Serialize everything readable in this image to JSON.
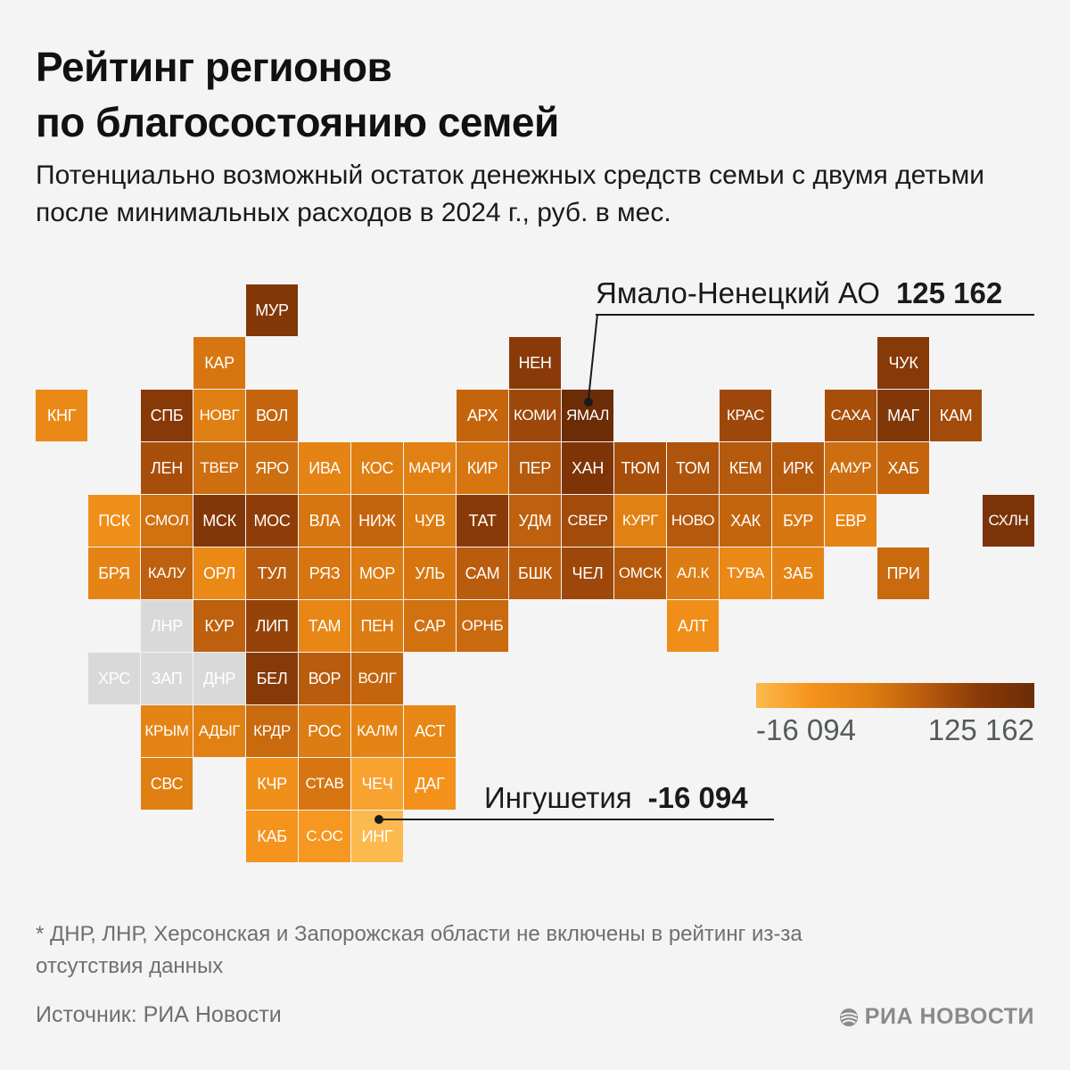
{
  "header": {
    "title_line1": "Рейтинг регионов",
    "title_line2": "по благосостоянию семей",
    "subtitle": "Потенциально возможный остаток денежных средств семьи с двумя детьми после минимальных расходов в 2024 г., руб. в мес."
  },
  "colors": {
    "scale": [
      "#fcb94d",
      "#f5931c",
      "#e07f12",
      "#ba5c0d",
      "#8a3a08",
      "#6b2c06"
    ],
    "no_data": "#d9d9d9",
    "text_on_tile": "#ffffff",
    "muted_text": "#6f6f6f"
  },
  "map": {
    "regions": [
      {
        "code": "МУР",
        "col": 4,
        "row": 0,
        "level": 0.85
      },
      {
        "code": "КАР",
        "col": 3,
        "row": 1,
        "level": 0.45
      },
      {
        "code": "НЕН",
        "col": 9,
        "row": 1,
        "level": 0.8
      },
      {
        "code": "ЧУК",
        "col": 16,
        "row": 1,
        "level": 0.82
      },
      {
        "code": "КНГ",
        "col": 0,
        "row": 2,
        "level": 0.3
      },
      {
        "code": "СПБ",
        "col": 2,
        "row": 2,
        "level": 0.82
      },
      {
        "code": "НОВГ",
        "col": 3,
        "row": 2,
        "level": 0.4
      },
      {
        "code": "ВОЛ",
        "col": 4,
        "row": 2,
        "level": 0.55
      },
      {
        "code": "АРХ",
        "col": 8,
        "row": 2,
        "level": 0.55
      },
      {
        "code": "КОМИ",
        "col": 9,
        "row": 2,
        "level": 0.72
      },
      {
        "code": "ЯМАЛ",
        "col": 10,
        "row": 2,
        "level": 1.0
      },
      {
        "code": "КРАС",
        "col": 13,
        "row": 2,
        "level": 0.72
      },
      {
        "code": "САХА",
        "col": 15,
        "row": 2,
        "level": 0.68
      },
      {
        "code": "МАГ",
        "col": 16,
        "row": 2,
        "level": 0.85
      },
      {
        "code": "КАМ",
        "col": 17,
        "row": 2,
        "level": 0.7
      },
      {
        "code": "ЛЕН",
        "col": 2,
        "row": 3,
        "level": 0.68
      },
      {
        "code": "ТВЕР",
        "col": 3,
        "row": 3,
        "level": 0.5
      },
      {
        "code": "ЯРО",
        "col": 4,
        "row": 3,
        "level": 0.5
      },
      {
        "code": "ИВА",
        "col": 5,
        "row": 3,
        "level": 0.35
      },
      {
        "code": "КОС",
        "col": 6,
        "row": 3,
        "level": 0.4
      },
      {
        "code": "МАРИ",
        "col": 7,
        "row": 3,
        "level": 0.38
      },
      {
        "code": "КИР",
        "col": 8,
        "row": 3,
        "level": 0.45
      },
      {
        "code": "ПЕР",
        "col": 9,
        "row": 3,
        "level": 0.62
      },
      {
        "code": "ХАН",
        "col": 10,
        "row": 3,
        "level": 0.88
      },
      {
        "code": "ТЮМ",
        "col": 11,
        "row": 3,
        "level": 0.68
      },
      {
        "code": "ТОМ",
        "col": 12,
        "row": 3,
        "level": 0.65
      },
      {
        "code": "КЕМ",
        "col": 13,
        "row": 3,
        "level": 0.62
      },
      {
        "code": "ИРК",
        "col": 14,
        "row": 3,
        "level": 0.62
      },
      {
        "code": "АМУР",
        "col": 15,
        "row": 3,
        "level": 0.5
      },
      {
        "code": "ХАБ",
        "col": 16,
        "row": 3,
        "level": 0.55
      },
      {
        "code": "ПСК",
        "col": 1,
        "row": 4,
        "level": 0.25
      },
      {
        "code": "СМОЛ",
        "col": 2,
        "row": 4,
        "level": 0.48
      },
      {
        "code": "МСК",
        "col": 3,
        "row": 4,
        "level": 0.85
      },
      {
        "code": "МОС",
        "col": 4,
        "row": 4,
        "level": 0.78
      },
      {
        "code": "ВЛА",
        "col": 5,
        "row": 4,
        "level": 0.45
      },
      {
        "code": "НИЖ",
        "col": 6,
        "row": 4,
        "level": 0.55
      },
      {
        "code": "ЧУВ",
        "col": 7,
        "row": 4,
        "level": 0.42
      },
      {
        "code": "ТАТ",
        "col": 8,
        "row": 4,
        "level": 0.8
      },
      {
        "code": "УДМ",
        "col": 9,
        "row": 4,
        "level": 0.58
      },
      {
        "code": "СВЕР",
        "col": 10,
        "row": 4,
        "level": 0.7
      },
      {
        "code": "КУРГ",
        "col": 11,
        "row": 4,
        "level": 0.38
      },
      {
        "code": "НОВО",
        "col": 12,
        "row": 4,
        "level": 0.62
      },
      {
        "code": "ХАК",
        "col": 13,
        "row": 4,
        "level": 0.55
      },
      {
        "code": "БУР",
        "col": 14,
        "row": 4,
        "level": 0.45
      },
      {
        "code": "ЕВР",
        "col": 15,
        "row": 4,
        "level": 0.35
      },
      {
        "code": "СХЛН",
        "col": 18,
        "row": 4,
        "level": 0.9
      },
      {
        "code": "БРЯ",
        "col": 1,
        "row": 5,
        "level": 0.35
      },
      {
        "code": "КАЛУ",
        "col": 2,
        "row": 5,
        "level": 0.58
      },
      {
        "code": "ОРЛ",
        "col": 3,
        "row": 5,
        "level": 0.3
      },
      {
        "code": "ТУЛ",
        "col": 4,
        "row": 5,
        "level": 0.6
      },
      {
        "code": "РЯЗ",
        "col": 5,
        "row": 5,
        "level": 0.45
      },
      {
        "code": "МОР",
        "col": 6,
        "row": 5,
        "level": 0.42
      },
      {
        "code": "УЛЬ",
        "col": 7,
        "row": 5,
        "level": 0.45
      },
      {
        "code": "САМ",
        "col": 8,
        "row": 5,
        "level": 0.6
      },
      {
        "code": "БШК",
        "col": 9,
        "row": 5,
        "level": 0.6
      },
      {
        "code": "ЧЕЛ",
        "col": 10,
        "row": 5,
        "level": 0.72
      },
      {
        "code": "ОМСК",
        "col": 11,
        "row": 5,
        "level": 0.62
      },
      {
        "code": "АЛ.К",
        "col": 12,
        "row": 5,
        "level": 0.42
      },
      {
        "code": "ТУВА",
        "col": 13,
        "row": 5,
        "level": 0.3
      },
      {
        "code": "ЗАБ",
        "col": 14,
        "row": 5,
        "level": 0.35
      },
      {
        "code": "ПРИ",
        "col": 16,
        "row": 5,
        "level": 0.52
      },
      {
        "code": "ЛНР",
        "col": 2,
        "row": 6,
        "level": null
      },
      {
        "code": "КУР",
        "col": 3,
        "row": 6,
        "level": 0.58
      },
      {
        "code": "ЛИП",
        "col": 4,
        "row": 6,
        "level": 0.75
      },
      {
        "code": "ТАМ",
        "col": 5,
        "row": 6,
        "level": 0.32
      },
      {
        "code": "ПЕН",
        "col": 6,
        "row": 6,
        "level": 0.42
      },
      {
        "code": "САР",
        "col": 7,
        "row": 6,
        "level": 0.48
      },
      {
        "code": "ОРНБ",
        "col": 8,
        "row": 6,
        "level": 0.52
      },
      {
        "code": "АЛТ",
        "col": 12,
        "row": 6,
        "level": 0.25
      },
      {
        "code": "ХРС",
        "col": 1,
        "row": 7,
        "level": null
      },
      {
        "code": "ЗАП",
        "col": 2,
        "row": 7,
        "level": null
      },
      {
        "code": "ДНР",
        "col": 3,
        "row": 7,
        "level": null
      },
      {
        "code": "БЕЛ",
        "col": 4,
        "row": 7,
        "level": 0.82
      },
      {
        "code": "ВОР",
        "col": 5,
        "row": 7,
        "level": 0.6
      },
      {
        "code": "ВОЛГ",
        "col": 6,
        "row": 7,
        "level": 0.55
      },
      {
        "code": "КРЫМ",
        "col": 2,
        "row": 8,
        "level": 0.35
      },
      {
        "code": "АДЫГ",
        "col": 3,
        "row": 8,
        "level": 0.38
      },
      {
        "code": "КРДР",
        "col": 4,
        "row": 8,
        "level": 0.52
      },
      {
        "code": "РОС",
        "col": 5,
        "row": 8,
        "level": 0.42
      },
      {
        "code": "КАЛМ",
        "col": 6,
        "row": 8,
        "level": 0.35
      },
      {
        "code": "АСТ",
        "col": 7,
        "row": 8,
        "level": 0.32
      },
      {
        "code": "СВС",
        "col": 2,
        "row": 9,
        "level": 0.4
      },
      {
        "code": "КЧР",
        "col": 4,
        "row": 9,
        "level": 0.25
      },
      {
        "code": "СТАВ",
        "col": 5,
        "row": 9,
        "level": 0.45
      },
      {
        "code": "ЧЕЧ",
        "col": 6,
        "row": 9,
        "level": 0.12
      },
      {
        "code": "ДАГ",
        "col": 7,
        "row": 9,
        "level": 0.22
      },
      {
        "code": "КАБ",
        "col": 4,
        "row": 10,
        "level": 0.2
      },
      {
        "code": "С.ОС",
        "col": 5,
        "row": 10,
        "level": 0.18
      },
      {
        "code": "ИНГ",
        "col": 6,
        "row": 10,
        "level": 0.0
      }
    ]
  },
  "callouts": {
    "max": {
      "name": "Ямало-Ненецкий АО",
      "value": "125 162",
      "code": "ЯМАЛ"
    },
    "min": {
      "name": "Ингушетия",
      "value": "-16 094",
      "code": "ИНГ"
    }
  },
  "legend": {
    "min_label": "-16 094",
    "max_label": "125 162",
    "min_value": -16094,
    "max_value": 125162
  },
  "footer": {
    "footnote": "* ДНР, ЛНР, Херсонская и Запорожская области не включены в рейтинг из-за отсутствия данных",
    "source": "Источник: РИА Новости",
    "brand": "РИА НОВОСТИ",
    "brand_icon": "ria-logo-icon"
  }
}
